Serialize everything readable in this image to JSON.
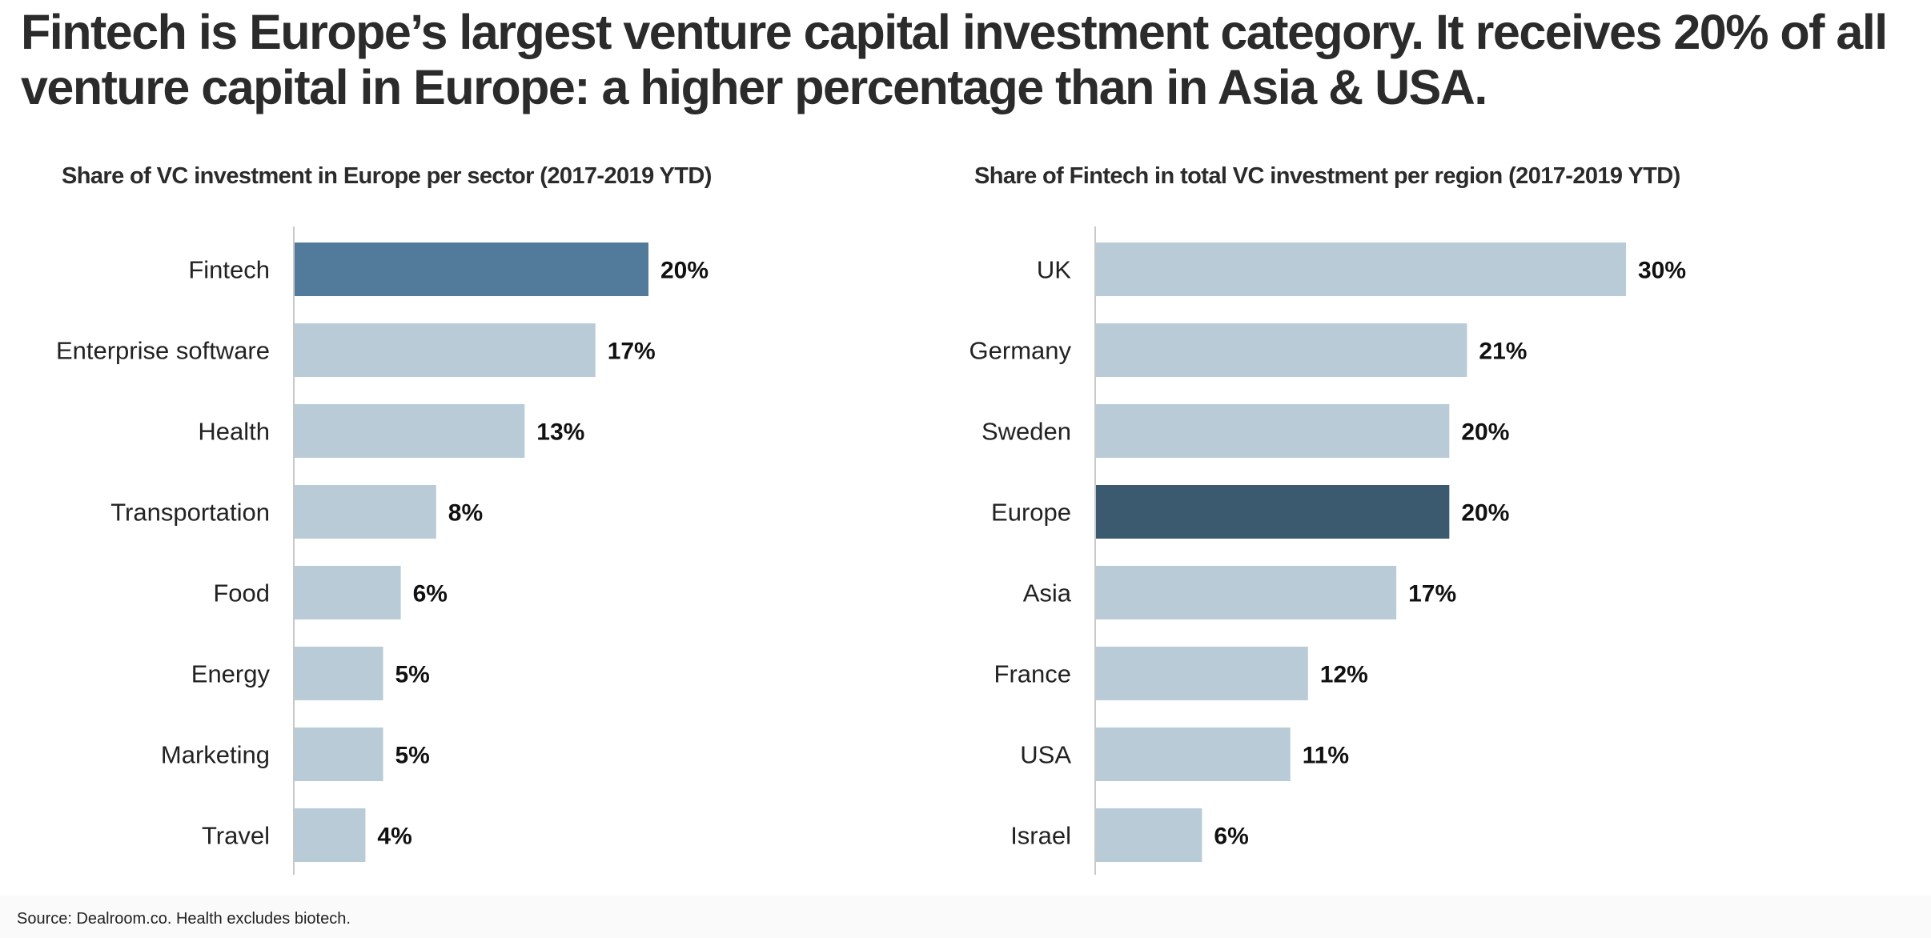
{
  "headline": "Fintech is Europe’s largest venture capital investment category. It receives 20% of all venture capital in Europe: a higher percentage than in Asia & USA.",
  "source": "Source: Dealroom.co. Health excludes biotech.",
  "colors": {
    "highlight_left": "#527a9a",
    "highlight_right": "#3b5a70",
    "bar": "#b8cbd7",
    "axis": "#c8c8c8"
  },
  "chart_data": [
    {
      "type": "bar",
      "orientation": "horizontal",
      "title": "Share of VC investment in Europe per sector (2017-2019 YTD)",
      "categories": [
        "Fintech",
        "Enterprise software",
        "Health",
        "Transportation",
        "Food",
        "Energy",
        "Marketing",
        "Travel"
      ],
      "values": [
        20,
        17,
        13,
        8,
        6,
        5,
        5,
        4
      ],
      "labels": [
        "20%",
        "17%",
        "13%",
        "8%",
        "6%",
        "5%",
        "5%",
        "4%"
      ],
      "unit": "%",
      "highlight": "Fintech",
      "xlim": [
        0,
        30
      ],
      "grid": false,
      "legend": "none"
    },
    {
      "type": "bar",
      "orientation": "horizontal",
      "title": "Share of Fintech in total VC investment per region (2017-2019 YTD)",
      "categories": [
        "UK",
        "Germany",
        "Sweden",
        "Europe",
        "Asia",
        "France",
        "USA",
        "Israel"
      ],
      "values": [
        30,
        21,
        20,
        20,
        17,
        12,
        11,
        6
      ],
      "labels": [
        "30%",
        "21%",
        "20%",
        "20%",
        "17%",
        "12%",
        "11%",
        "6%"
      ],
      "unit": "%",
      "highlight": "Europe",
      "xlim": [
        0,
        30
      ],
      "grid": false,
      "legend": "none"
    }
  ]
}
